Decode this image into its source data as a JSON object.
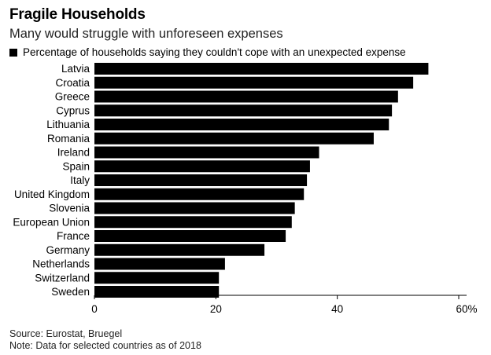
{
  "chart_data": {
    "type": "bar",
    "orientation": "horizontal",
    "title": "Fragile Households",
    "subtitle": "Many would struggle with unforeseen expenses",
    "legend": [
      "Percentage of households saying they couldn't cope with an unexpected expense"
    ],
    "legend_position": "top-left",
    "categories": [
      "Latvia",
      "Croatia",
      "Greece",
      "Cyprus",
      "Lithuania",
      "Romania",
      "Ireland",
      "Spain",
      "Italy",
      "United Kingdom",
      "Slovenia",
      "European Union",
      "France",
      "Germany",
      "Netherlands",
      "Switzerland",
      "Sweden"
    ],
    "series": [
      {
        "name": "Percentage of households saying they couldn't cope with an unexpected expense",
        "values": [
          55.0,
          52.5,
          50.0,
          49.0,
          48.5,
          46.0,
          37.0,
          35.5,
          35.0,
          34.5,
          33.0,
          32.5,
          31.5,
          28.0,
          21.5,
          20.5,
          20.5
        ]
      }
    ],
    "x_ticks": [
      "0",
      "20",
      "40",
      "60%"
    ],
    "xlim": [
      0,
      60
    ],
    "grid": false
  },
  "footer": {
    "source": "Source: Eurostat, Bruegel",
    "note": "Note: Data for selected countries as of 2018"
  }
}
